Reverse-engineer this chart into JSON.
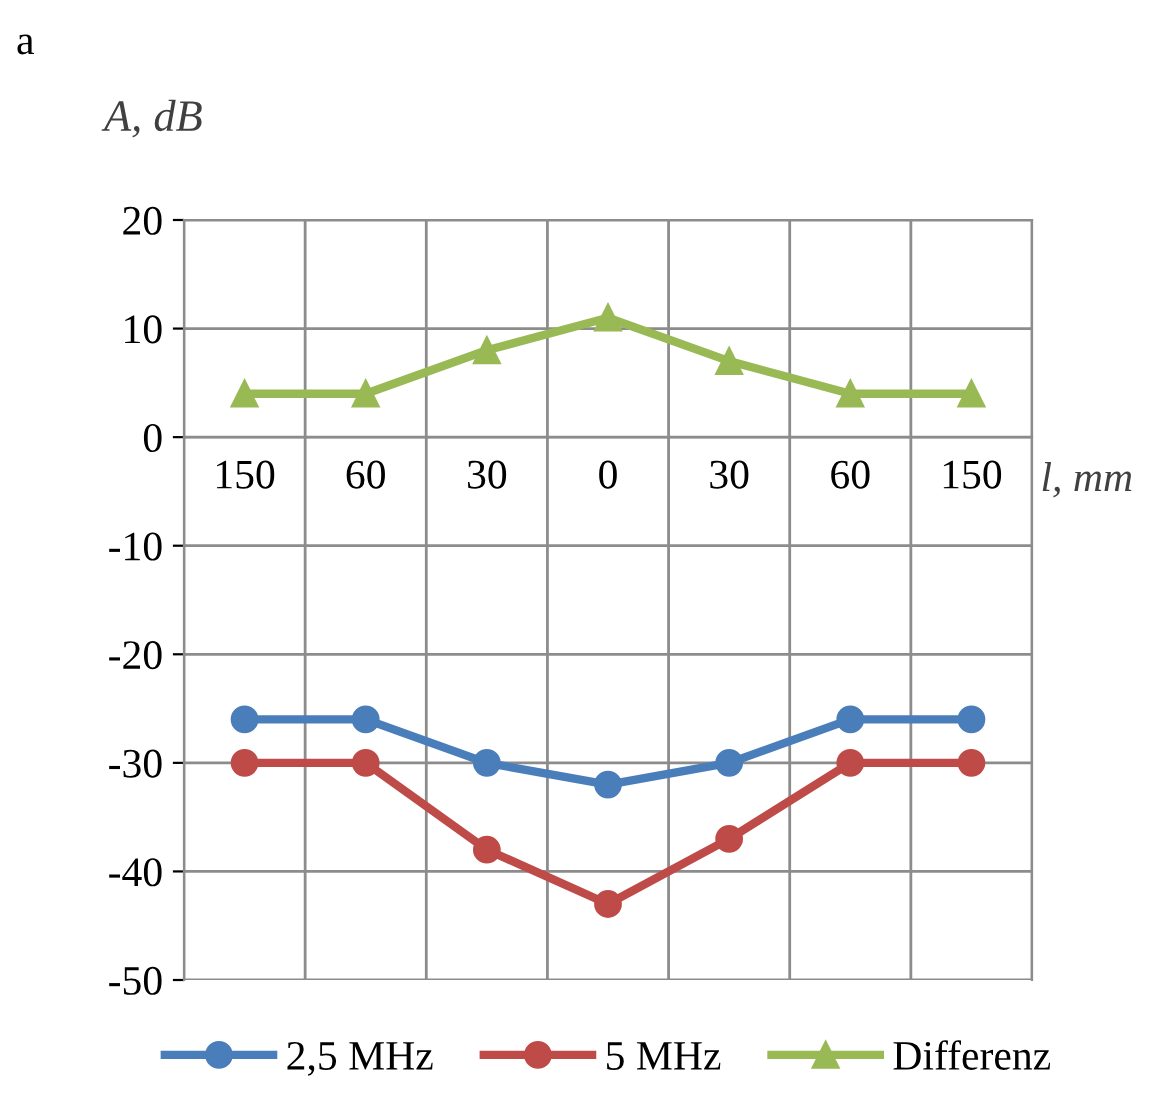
{
  "chart_data": {
    "type": "line",
    "title": "a",
    "ylabel": "A, dB",
    "xlabel": "l, mm",
    "categories": [
      "150",
      "60",
      "30",
      "0",
      "30",
      "60",
      "150"
    ],
    "series": [
      {
        "name": "2,5 MHz",
        "color": "#4a7ebb",
        "values": [
          -26,
          -26,
          -30,
          -32,
          -30,
          -26,
          -26
        ],
        "marker": "circle"
      },
      {
        "name": "5 MHz",
        "color": "#be4b48",
        "values": [
          -30,
          -30,
          -38,
          -43,
          -37,
          -30,
          -30
        ],
        "marker": "circle"
      },
      {
        "name": "Differenz",
        "color": "#98b954",
        "values": [
          4,
          4,
          8,
          11,
          7,
          4,
          4
        ],
        "marker": "triangle"
      }
    ],
    "ylim": [
      -50,
      20
    ],
    "yticks": [
      -50,
      -40,
      -30,
      -20,
      -10,
      0,
      10,
      20
    ],
    "grid": true,
    "legend": "bottom",
    "line_style": "solid"
  }
}
